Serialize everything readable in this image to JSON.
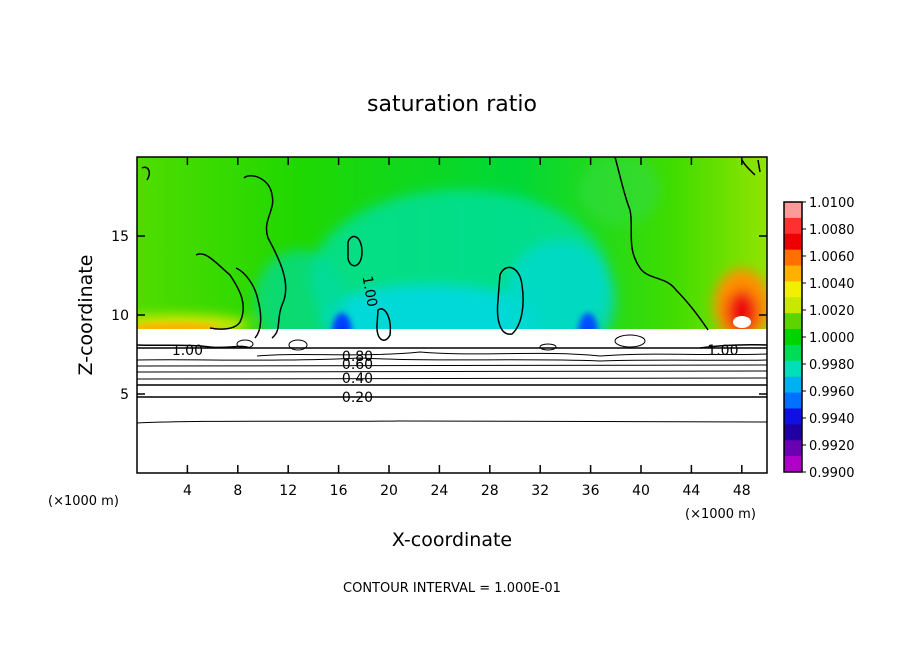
{
  "chart_data": {
    "type": "heatmap",
    "title": "saturation ratio",
    "xlabel": "X-coordinate",
    "ylabel": "Z-coordinate",
    "x_unit": "(×1000 m)",
    "x_unit_right": "(×1000 m)",
    "xlim": [
      0,
      50
    ],
    "ylim": [
      0,
      20
    ],
    "x_ticks": [
      4,
      8,
      12,
      16,
      20,
      24,
      28,
      32,
      36,
      40,
      44,
      48
    ],
    "y_ticks": [
      5,
      10,
      15
    ],
    "colorbar": {
      "min": 0.99,
      "max": 1.01,
      "labels": [
        "1.0100",
        "1.0080",
        "1.0060",
        "1.0040",
        "1.0020",
        "1.0000",
        "0.9980",
        "0.9960",
        "0.9940",
        "0.9920",
        "0.9900"
      ],
      "colors": [
        "#ff9a9a",
        "#ff3030",
        "#ee0000",
        "#ff7000",
        "#ffb000",
        "#f0f000",
        "#c8e800",
        "#5cd400",
        "#00d400",
        "#00dc58",
        "#00e0b8",
        "#00b0f0",
        "#0070ff",
        "#1010e0",
        "#2000a0",
        "#6a00b0",
        "#b000c8"
      ]
    },
    "contour_labels": [
      {
        "text": "1.00",
        "x": 18.5,
        "y": 11.5
      },
      {
        "text": "1.00",
        "x": 4.0,
        "y": 7.8
      },
      {
        "text": "1.00",
        "x": 46.5,
        "y": 7.8
      },
      {
        "text": "0.80",
        "x": 17.5,
        "y": 7.4
      },
      {
        "text": "0.60",
        "x": 17.5,
        "y": 6.9
      },
      {
        "text": "0.40",
        "x": 17.5,
        "y": 6.0
      },
      {
        "text": "0.20",
        "x": 17.5,
        "y": 4.8
      }
    ],
    "contour_interval_label": "CONTOUR INTERVAL =  1.000E-01"
  }
}
